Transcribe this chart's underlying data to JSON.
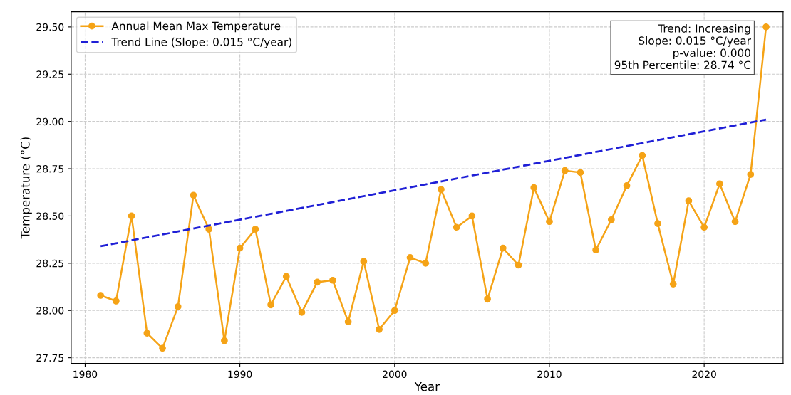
{
  "chart_data": {
    "type": "line",
    "xlabel": "Year",
    "ylabel": "Temperature (°C)",
    "x": [
      1981,
      1982,
      1983,
      1984,
      1985,
      1986,
      1987,
      1988,
      1989,
      1990,
      1991,
      1992,
      1993,
      1994,
      1995,
      1996,
      1997,
      1998,
      1999,
      2000,
      2001,
      2002,
      2003,
      2004,
      2005,
      2006,
      2007,
      2008,
      2009,
      2010,
      2011,
      2012,
      2013,
      2014,
      2015,
      2016,
      2017,
      2018,
      2019,
      2020,
      2021,
      2022,
      2023,
      2024
    ],
    "series": [
      {
        "name": "Annual Mean Max Temperature",
        "color": "#f5a316",
        "marker": "circle",
        "line_style": "solid",
        "values": [
          28.08,
          28.05,
          28.5,
          27.88,
          27.8,
          28.02,
          28.61,
          28.43,
          27.84,
          28.33,
          28.43,
          28.03,
          28.18,
          27.99,
          28.15,
          28.16,
          27.94,
          28.26,
          27.9,
          28.0,
          28.28,
          28.25,
          28.64,
          28.44,
          28.5,
          28.06,
          28.33,
          28.24,
          28.65,
          28.47,
          28.74,
          28.73,
          28.32,
          28.48,
          28.66,
          28.82,
          28.46,
          28.14,
          28.58,
          28.44,
          28.67,
          28.47,
          28.72,
          29.5
        ]
      },
      {
        "name": "Trend Line (Slope: 0.015 °C/year)",
        "color": "#1f1fd6",
        "type": "line",
        "marker": "none",
        "line_style": "dashed",
        "x": [
          1981,
          2024
        ],
        "values": [
          28.34,
          29.01
        ]
      }
    ],
    "xlim": [
      1979.1,
      2025.1
    ],
    "xticks": [
      1980,
      1990,
      2000,
      2010,
      2020
    ],
    "ylim": [
      27.72,
      29.58
    ],
    "yticks": [
      {
        "value": 27.75,
        "label": "27.75"
      },
      {
        "value": 28.0,
        "label": "28.00"
      },
      {
        "value": 28.25,
        "label": "28.25"
      },
      {
        "value": 28.5,
        "label": "28.50"
      },
      {
        "value": 28.75,
        "label": "28.75"
      },
      {
        "value": 29.0,
        "label": "29.00"
      },
      {
        "value": 29.25,
        "label": "29.25"
      },
      {
        "value": 29.5,
        "label": "29.50"
      }
    ],
    "grid": true,
    "legend": "top left",
    "annotations": [
      "Trend: Increasing\nSlope: 0.015 °C/year\np-value: 0.000\n95th Percentile: 28.74 °C"
    ]
  }
}
